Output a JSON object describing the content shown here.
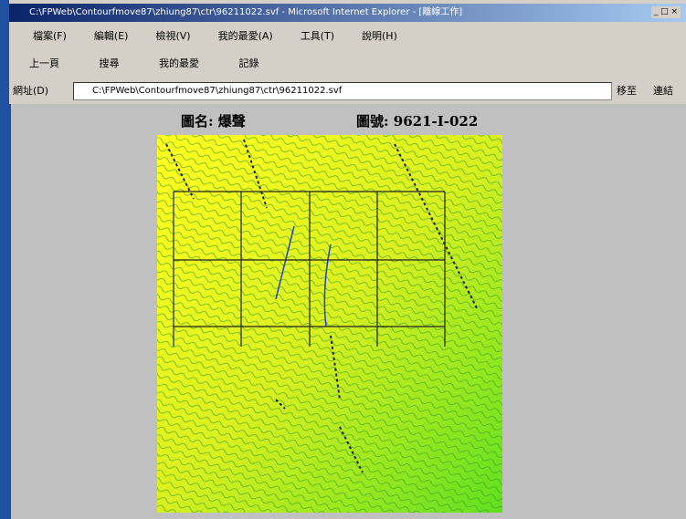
{
  "window": {
    "title": "C:\\FPWeb\\Contourfmove87\\zhiung87\\ctr\\96211022.svf - Microsoft Internet Explorer - [離線工作]"
  },
  "menu": [
    "檔案(F)",
    "編輯(E)",
    "檢視(V)",
    "我的最愛(A)",
    "工具(T)",
    "說明(H)"
  ],
  "toolbar": {
    "back": "上一頁",
    "search": "搜尋",
    "favorites": "我的最愛",
    "history": "記錄"
  },
  "address_bar": {
    "label": "網址(D)",
    "url": "C:\\FPWeb\\Contourfmove87\\zhiung87\\ctr\\96211022.svf",
    "go": "移至",
    "links": "連結"
  },
  "page": {
    "map_name": "圖名: 爆聲",
    "map_number": "圖號: 9621-I-022"
  }
}
